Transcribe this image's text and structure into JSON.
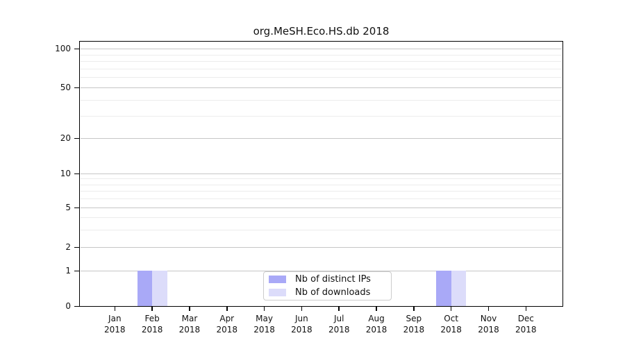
{
  "title": "org.MeSH.Eco.HS.db 2018",
  "chart_data": {
    "type": "bar",
    "title": "org.MeSH.Eco.HS.db 2018",
    "xlabel": "",
    "ylabel": "",
    "categories": [
      {
        "month": "Jan",
        "year": "2018"
      },
      {
        "month": "Feb",
        "year": "2018"
      },
      {
        "month": "Mar",
        "year": "2018"
      },
      {
        "month": "Apr",
        "year": "2018"
      },
      {
        "month": "May",
        "year": "2018"
      },
      {
        "month": "Jun",
        "year": "2018"
      },
      {
        "month": "Jul",
        "year": "2018"
      },
      {
        "month": "Aug",
        "year": "2018"
      },
      {
        "month": "Sep",
        "year": "2018"
      },
      {
        "month": "Oct",
        "year": "2018"
      },
      {
        "month": "Nov",
        "year": "2018"
      },
      {
        "month": "Dec",
        "year": "2018"
      }
    ],
    "series": [
      {
        "name": "Nb of distinct IPs",
        "color": "#a9a9f7",
        "values": [
          0,
          1,
          0,
          0,
          0,
          0,
          0,
          0,
          0,
          1,
          0,
          0
        ]
      },
      {
        "name": "Nb of downloads",
        "color": "#dcdcfa",
        "values": [
          0,
          1,
          0,
          0,
          0,
          0,
          0,
          0,
          0,
          1,
          0,
          0
        ]
      }
    ],
    "y_scale": "log1p",
    "y_ticks": [
      0,
      1,
      2,
      5,
      10,
      20,
      50,
      100
    ],
    "y_minor_gridlines": [
      3,
      4,
      6,
      7,
      8,
      9,
      30,
      40,
      60,
      70,
      80,
      90
    ],
    "ylim": [
      0,
      115
    ],
    "grid": "horizontal",
    "legend_position": "bottom-center"
  }
}
